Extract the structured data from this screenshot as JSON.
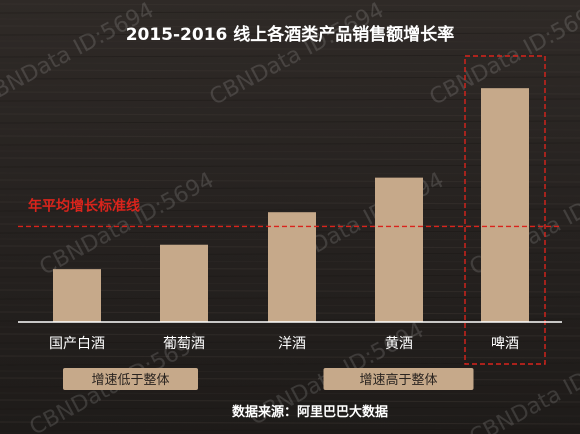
{
  "colors": {
    "background": "#2b2623",
    "bar": "#c6a98a",
    "axis": "#ffffff",
    "reference_line": "#d9241c",
    "group_badge": "#c6a98a",
    "title_text": "#ffffff"
  },
  "chart_data": {
    "type": "bar",
    "title": "2015-2016 线上各酒类产品销售额增长率",
    "categories": [
      "国产白酒",
      "葡萄酒",
      "洋酒",
      "黄酒",
      "啤酒"
    ],
    "values": [
      26,
      38,
      54,
      71,
      115
    ],
    "ylim": [
      0,
      120
    ],
    "grid": false,
    "reference_line": {
      "label": "年平均增长标准线",
      "value": 47
    },
    "groups": [
      {
        "label": "增速低于整体",
        "categories": [
          "国产白酒",
          "葡萄酒"
        ]
      },
      {
        "label": "增速高于整体",
        "categories": [
          "洋酒",
          "黄酒",
          "啤酒"
        ]
      }
    ],
    "highlight": "啤酒",
    "source": "数据来源：阿里巴巴大数据",
    "watermark": "CBNData ID:5694"
  }
}
